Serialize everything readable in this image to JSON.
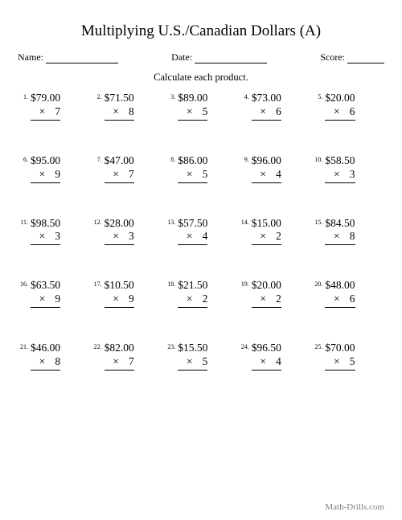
{
  "title": "Multiplying U.S./Canadian Dollars (A)",
  "meta": {
    "name_label": "Name:",
    "date_label": "Date:",
    "score_label": "Score:"
  },
  "instructions": "Calculate each product.",
  "mult_sign": "×",
  "footer": "Math-Drills.com",
  "problems": [
    {
      "n": "1.",
      "top": "$79.00",
      "bot": "7"
    },
    {
      "n": "2.",
      "top": "$71.50",
      "bot": "8"
    },
    {
      "n": "3.",
      "top": "$89.00",
      "bot": "5"
    },
    {
      "n": "4.",
      "top": "$73.00",
      "bot": "6"
    },
    {
      "n": "5.",
      "top": "$20.00",
      "bot": "6"
    },
    {
      "n": "6.",
      "top": "$95.00",
      "bot": "9"
    },
    {
      "n": "7.",
      "top": "$47.00",
      "bot": "7"
    },
    {
      "n": "8.",
      "top": "$86.00",
      "bot": "5"
    },
    {
      "n": "9.",
      "top": "$96.00",
      "bot": "4"
    },
    {
      "n": "10.",
      "top": "$58.50",
      "bot": "3"
    },
    {
      "n": "11.",
      "top": "$98.50",
      "bot": "3"
    },
    {
      "n": "12.",
      "top": "$28.00",
      "bot": "3"
    },
    {
      "n": "13.",
      "top": "$57.50",
      "bot": "4"
    },
    {
      "n": "14.",
      "top": "$15.00",
      "bot": "2"
    },
    {
      "n": "15.",
      "top": "$84.50",
      "bot": "8"
    },
    {
      "n": "16.",
      "top": "$63.50",
      "bot": "9"
    },
    {
      "n": "17.",
      "top": "$10.50",
      "bot": "9"
    },
    {
      "n": "18.",
      "top": "$21.50",
      "bot": "2"
    },
    {
      "n": "19.",
      "top": "$20.00",
      "bot": "2"
    },
    {
      "n": "20.",
      "top": "$48.00",
      "bot": "6"
    },
    {
      "n": "21.",
      "top": "$46.00",
      "bot": "8"
    },
    {
      "n": "22.",
      "top": "$82.00",
      "bot": "7"
    },
    {
      "n": "23.",
      "top": "$15.50",
      "bot": "5"
    },
    {
      "n": "24.",
      "top": "$96.50",
      "bot": "4"
    },
    {
      "n": "25.",
      "top": "$70.00",
      "bot": "5"
    }
  ],
  "style": {
    "background_color": "#ffffff",
    "text_color": "#000000",
    "footer_color": "#808080",
    "line_color": "#000000",
    "title_fontsize": 19,
    "body_fontsize": 13.5,
    "num_fontsize": 8,
    "grid_cols": 5,
    "grid_rows": 5,
    "name_line_width": 90,
    "date_line_width": 90,
    "score_line_width": 46
  }
}
